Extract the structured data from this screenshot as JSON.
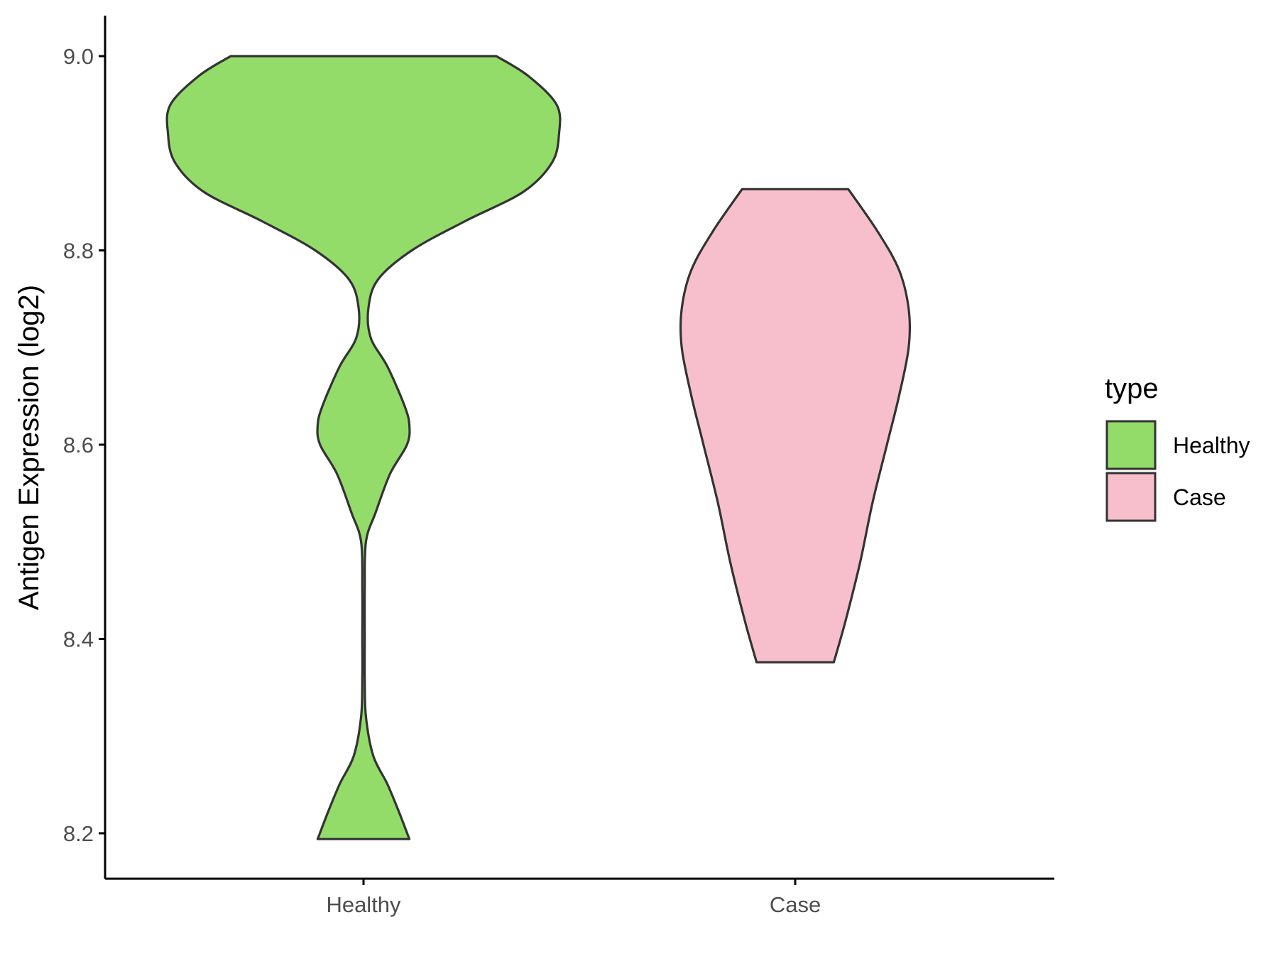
{
  "chart_data": {
    "type": "violin",
    "ylabel": "Antigen Expression (log2)",
    "xlabel": "",
    "categories": [
      "Healthy",
      "Case"
    ],
    "ylim": [
      8.155,
      9.042
    ],
    "yticks": [
      "8.2",
      "8.4",
      "8.6",
      "8.8",
      "9.0"
    ],
    "grid": false,
    "legend": {
      "title": "type",
      "position": "right",
      "items": [
        {
          "label": "Healthy",
          "color": "#93dc6a"
        },
        {
          "label": "Case",
          "color": "#f7bfcb"
        }
      ]
    },
    "series": [
      {
        "category": "Healthy",
        "color": "#93dc6a",
        "min": 8.194,
        "max": 9.0,
        "density_profile": [
          [
            8.194,
            0.19
          ],
          [
            8.22,
            0.15
          ],
          [
            8.25,
            0.1
          ],
          [
            8.28,
            0.04
          ],
          [
            8.32,
            0.01
          ],
          [
            8.36,
            0.005
          ],
          [
            8.4,
            0.005
          ],
          [
            8.45,
            0.005
          ],
          [
            8.5,
            0.01
          ],
          [
            8.53,
            0.05
          ],
          [
            8.57,
            0.11
          ],
          [
            8.6,
            0.18
          ],
          [
            8.62,
            0.19
          ],
          [
            8.64,
            0.17
          ],
          [
            8.68,
            0.1
          ],
          [
            8.71,
            0.03
          ],
          [
            8.74,
            0.02
          ],
          [
            8.77,
            0.06
          ],
          [
            8.8,
            0.2
          ],
          [
            8.83,
            0.42
          ],
          [
            8.86,
            0.66
          ],
          [
            8.89,
            0.78
          ],
          [
            8.92,
            0.81
          ],
          [
            8.95,
            0.8
          ],
          [
            8.98,
            0.68
          ],
          [
            9.0,
            0.55
          ]
        ]
      },
      {
        "category": "Case",
        "color": "#f7bfcb",
        "min": 8.376,
        "max": 8.863,
        "density_profile": [
          [
            8.376,
            0.16
          ],
          [
            8.42,
            0.21
          ],
          [
            8.48,
            0.27
          ],
          [
            8.54,
            0.32
          ],
          [
            8.6,
            0.38
          ],
          [
            8.65,
            0.43
          ],
          [
            8.7,
            0.47
          ],
          [
            8.74,
            0.47
          ],
          [
            8.78,
            0.43
          ],
          [
            8.82,
            0.34
          ],
          [
            8.863,
            0.22
          ]
        ]
      }
    ]
  }
}
